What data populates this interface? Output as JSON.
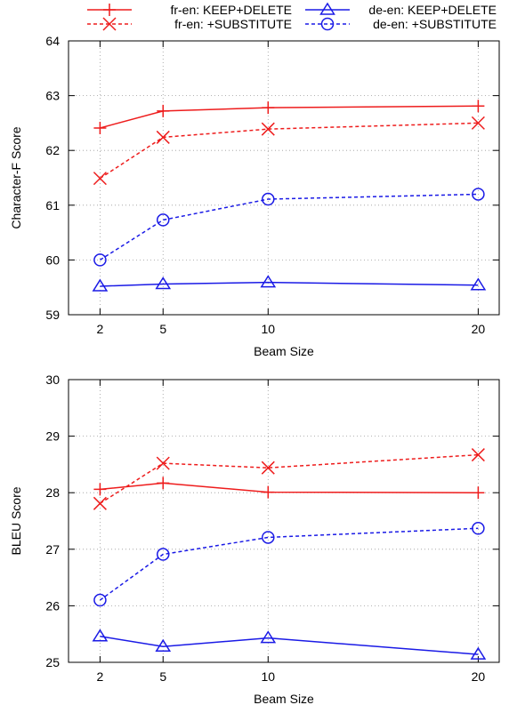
{
  "legend": {
    "entries": [
      {
        "label": "fr-en: KEEP+DELETE",
        "color": "#ee1c1c",
        "dash": "solid",
        "marker": "plus"
      },
      {
        "label": "de-en: KEEP+DELETE",
        "color": "#1a1ae6",
        "dash": "solid",
        "marker": "triangle"
      },
      {
        "label": "fr-en: +SUBSTITUTE",
        "color": "#ee1c1c",
        "dash": "dotted",
        "marker": "cross"
      },
      {
        "label": "de-en: +SUBSTITUTE",
        "color": "#1a1ae6",
        "dash": "dotted",
        "marker": "circle"
      }
    ]
  },
  "chart_data": [
    {
      "type": "line",
      "title": "",
      "xlabel": "Beam Size",
      "ylabel": "Character-F Score",
      "x": [
        2,
        5,
        10,
        20
      ],
      "xticks": [
        2,
        5,
        10,
        20
      ],
      "xlim": [
        0.5,
        21
      ],
      "ylim": [
        59,
        64
      ],
      "yticks": [
        59,
        60,
        61,
        62,
        63,
        64
      ],
      "grid": true,
      "series": [
        {
          "name": "fr-en: KEEP+DELETE",
          "values": [
            62.41,
            62.72,
            62.78,
            62.81
          ]
        },
        {
          "name": "fr-en: +SUBSTITUTE",
          "values": [
            61.49,
            62.24,
            62.39,
            62.5
          ]
        },
        {
          "name": "de-en: KEEP+DELETE",
          "values": [
            59.52,
            59.56,
            59.59,
            59.54
          ]
        },
        {
          "name": "de-en: +SUBSTITUTE",
          "values": [
            60.0,
            60.73,
            61.11,
            61.2
          ]
        }
      ]
    },
    {
      "type": "line",
      "title": "",
      "xlabel": "Beam Size",
      "ylabel": "BLEU Score",
      "x": [
        2,
        5,
        10,
        20
      ],
      "xticks": [
        2,
        5,
        10,
        20
      ],
      "xlim": [
        0.5,
        21
      ],
      "ylim": [
        25,
        30
      ],
      "yticks": [
        25,
        26,
        27,
        28,
        29,
        30
      ],
      "grid": true,
      "series": [
        {
          "name": "fr-en: KEEP+DELETE",
          "values": [
            28.06,
            28.17,
            28.01,
            28.0
          ]
        },
        {
          "name": "fr-en: +SUBSTITUTE",
          "values": [
            27.81,
            28.52,
            28.44,
            28.67
          ]
        },
        {
          "name": "de-en: KEEP+DELETE",
          "values": [
            25.46,
            25.28,
            25.43,
            25.14
          ]
        },
        {
          "name": "de-en: +SUBSTITUTE",
          "values": [
            26.1,
            26.91,
            27.21,
            27.37
          ]
        }
      ]
    }
  ]
}
